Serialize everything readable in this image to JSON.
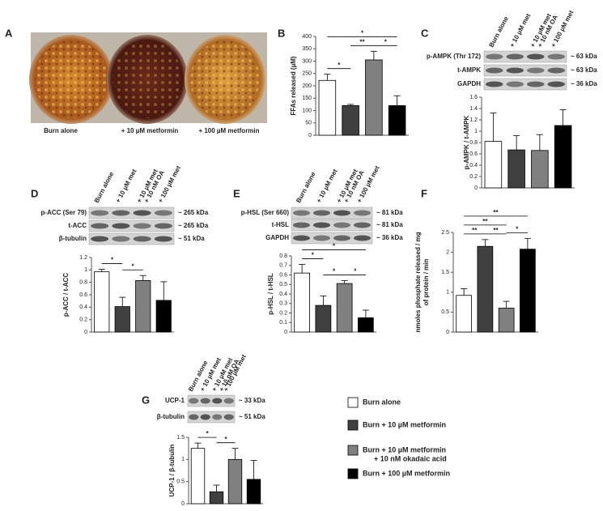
{
  "panel_a": {
    "panel": "A",
    "labels": [
      "Burn alone",
      "+ 10 µM metformin",
      "+ 100 µM metformin"
    ]
  },
  "blots": [
    {
      "panel": "C",
      "lanes": [
        [
          "Burn alone"
        ],
        [
          "+ 10 µM met"
        ],
        [
          "+ 10 µM met",
          "+ 10 nM OA"
        ],
        [
          "+ 100 µM met"
        ]
      ],
      "rows": [
        {
          "label": "p-AMPK (Thr 172)",
          "size": "~ 63 kDa"
        },
        {
          "label": "t-AMPK",
          "size": "~ 63 kDa"
        },
        {
          "label": "GAPDH",
          "size": "~ 36 kDa"
        }
      ]
    },
    {
      "panel": "D",
      "lanes": [
        [
          "Burn alone"
        ],
        [
          "+ 10 µM met"
        ],
        [
          "+ 10 µM met",
          "+ 10 nM OA"
        ],
        [
          "+ 100 µM met"
        ]
      ],
      "rows": [
        {
          "label": "p-ACC (Ser 79)",
          "size": "~ 265 kDa"
        },
        {
          "label": "t-ACC",
          "size": "~ 265 kDa"
        },
        {
          "label": "β-tubulin",
          "size": "~ 51 kDa"
        }
      ]
    },
    {
      "panel": "E",
      "lanes": [
        [
          "Burn alone"
        ],
        [
          "+ 10 µM met"
        ],
        [
          "+ 10 µM met",
          "+ 10 nM OA"
        ],
        [
          "+ 100 µM met"
        ]
      ],
      "rows": [
        {
          "label": "p-HSL (Ser 660)",
          "size": "~ 81 kDa"
        },
        {
          "label": "t-HSL",
          "size": "~ 81 kDa"
        },
        {
          "label": "GAPDH",
          "size": "~ 36 kDa"
        }
      ]
    },
    {
      "panel": "G",
      "lanes": [
        [
          "Burn alone"
        ],
        [
          "+ 10 µM met"
        ],
        [
          "+ 10 µM met",
          "+ 10 nM OA"
        ],
        [
          "+ 100 µM met"
        ]
      ],
      "rows": [
        {
          "label": "UCP-1",
          "size": "~ 33 kDa"
        },
        {
          "label": "β-tubulin",
          "size": "~ 51 kDa"
        }
      ]
    }
  ],
  "legend": {
    "labels": [
      [
        "Burn alone"
      ],
      [
        "Burn + 10 µM metformin"
      ],
      [
        "Burn + 10 µM metformin",
        "+ 10 nM okadaic acid"
      ],
      [
        "Burn + 100 µM metformin"
      ]
    ],
    "colors": [
      "#ffffff",
      "#404040",
      "#808080",
      "#000000"
    ]
  },
  "chart_data": [
    {
      "type": "bar",
      "panel": "B",
      "ylabel": [
        "FFAs released (µM)"
      ],
      "values": [
        222,
        120,
        305,
        120
      ],
      "errors": [
        25,
        5,
        35,
        40
      ],
      "ylim": [
        0,
        400
      ],
      "yticks": [
        0,
        50,
        100,
        150,
        200,
        250,
        300,
        350,
        400
      ],
      "annotations": [
        {
          "label": "*",
          "bars": [
            0,
            1
          ]
        },
        {
          "label": "**",
          "bars": [
            1,
            2
          ]
        },
        {
          "label": "*",
          "bars": [
            2,
            3
          ]
        },
        {
          "label": "*",
          "bars": [
            0,
            3
          ]
        }
      ]
    },
    {
      "type": "bar",
      "panel": "C",
      "ylabel": [
        "p-AMPK / t-AMPK"
      ],
      "values": [
        0.82,
        0.67,
        0.66,
        1.1
      ],
      "errors": [
        0.5,
        0.25,
        0.28,
        0.28
      ],
      "ylim": [
        0,
        1.6
      ],
      "yticks": [
        0,
        0.2,
        0.4,
        0.6,
        0.8,
        1,
        1.2,
        1.4,
        1.6
      ],
      "annotations": []
    },
    {
      "type": "bar",
      "panel": "D",
      "ylabel": [
        "p-ACC / t-ACC"
      ],
      "values": [
        0.97,
        0.41,
        0.83,
        0.51
      ],
      "errors": [
        0.04,
        0.15,
        0.08,
        0.3
      ],
      "ylim": [
        0,
        1.2
      ],
      "yticks": [
        0,
        0.2,
        0.4,
        0.6,
        0.8,
        1,
        1.2
      ],
      "annotations": [
        {
          "label": "*",
          "bars": [
            0,
            1
          ]
        },
        {
          "label": "*",
          "bars": [
            1,
            2
          ]
        }
      ]
    },
    {
      "type": "bar",
      "panel": "E",
      "ylabel": [
        "p-HSL / t-HSL"
      ],
      "values": [
        0.62,
        0.28,
        0.51,
        0.15
      ],
      "errors": [
        0.09,
        0.1,
        0.03,
        0.08
      ],
      "ylim": [
        0,
        0.8
      ],
      "yticks": [
        0,
        0.1,
        0.2,
        0.3,
        0.4,
        0.5,
        0.6,
        0.7,
        0.8
      ],
      "annotations": [
        {
          "label": "*",
          "bars": [
            0,
            1
          ]
        },
        {
          "label": "*",
          "bars": [
            1,
            2
          ]
        },
        {
          "label": "*",
          "bars": [
            2,
            3
          ]
        },
        {
          "label": "*",
          "bars": [
            0,
            3
          ]
        }
      ]
    },
    {
      "type": "bar",
      "panel": "F",
      "ylabel": [
        "nmoles phosphate released / mg",
        "of protein / min"
      ],
      "values": [
        0.92,
        2.15,
        0.6,
        2.08
      ],
      "errors": [
        0.17,
        0.17,
        0.17,
        0.27
      ],
      "ylim": [
        0,
        2.5
      ],
      "yticks": [
        0,
        0.5,
        1,
        1.5,
        2,
        2.5
      ],
      "annotations": [
        {
          "label": "**",
          "bars": [
            0,
            1
          ]
        },
        {
          "label": "**",
          "bars": [
            1,
            2
          ]
        },
        {
          "label": "*",
          "bars": [
            2,
            3
          ]
        },
        {
          "label": "**",
          "bars": [
            0,
            2
          ]
        },
        {
          "label": "**",
          "bars": [
            0,
            3
          ]
        }
      ]
    },
    {
      "type": "bar",
      "panel": "G",
      "ylabel": [
        "UCP-1 / β-tubulin"
      ],
      "values": [
        1.25,
        0.27,
        1.0,
        0.55
      ],
      "errors": [
        0.12,
        0.15,
        0.25,
        0.43
      ],
      "ylim": [
        0,
        1.5
      ],
      "yticks": [
        0,
        0.5,
        1,
        1.5
      ],
      "annotations": [
        {
          "label": "*",
          "bars": [
            0,
            1
          ]
        },
        {
          "label": "*",
          "bars": [
            1,
            2
          ]
        }
      ]
    }
  ]
}
